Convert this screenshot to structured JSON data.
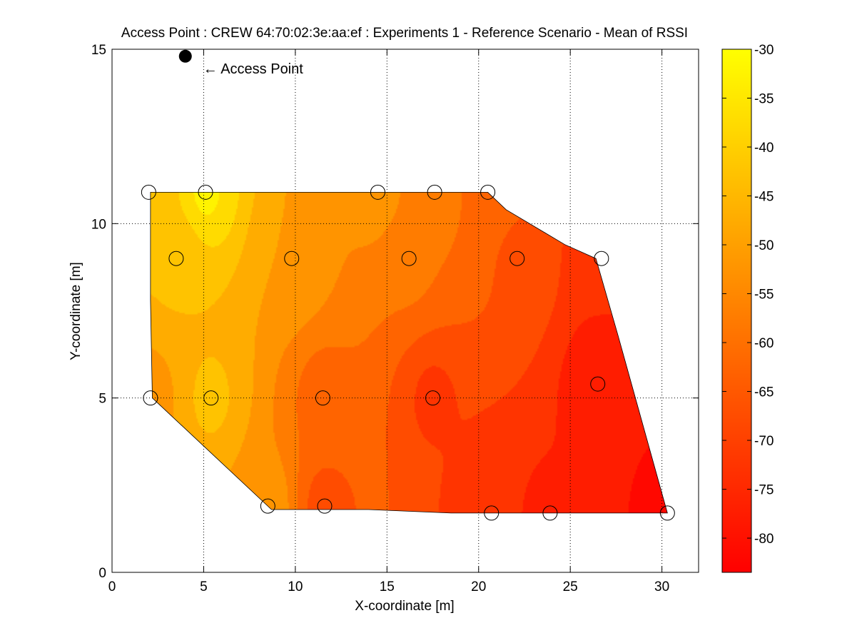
{
  "chart_data": {
    "type": "contour",
    "title": "Access Point : CREW 64:70:02:3e:aa:ef : Experiments 1 - Reference Scenario - Mean of RSSI",
    "xlabel": "X-coordinate [m]",
    "ylabel": "Y-coordinate [m]",
    "xlim": [
      0,
      32
    ],
    "ylim": [
      0,
      15
    ],
    "xticks": [
      0,
      5,
      10,
      15,
      20,
      25,
      30
    ],
    "yticks": [
      0,
      5,
      10,
      15
    ],
    "grid": true,
    "colormap": "autumn",
    "colorbar": {
      "range": [
        -83.5,
        -30
      ],
      "ticks": [
        -30,
        -35,
        -40,
        -45,
        -50,
        -55,
        -60,
        -65,
        -70,
        -75,
        -80
      ],
      "color_max": "#ffff00",
      "color_min": "#ff0000"
    },
    "access_point": {
      "x": 4.0,
      "y": 14.8,
      "annotation": "← Access Point",
      "color": "#000000"
    },
    "measurement_points": [
      {
        "x": 2.0,
        "y": 10.9,
        "rssi": -43
      },
      {
        "x": 5.1,
        "y": 10.9,
        "rssi": -34
      },
      {
        "x": 14.5,
        "y": 10.9,
        "rssi": -52
      },
      {
        "x": 17.6,
        "y": 10.9,
        "rssi": -58
      },
      {
        "x": 20.5,
        "y": 10.9,
        "rssi": -61
      },
      {
        "x": 3.5,
        "y": 9.0,
        "rssi": -44
      },
      {
        "x": 9.8,
        "y": 9.0,
        "rssi": -50
      },
      {
        "x": 16.2,
        "y": 9.0,
        "rssi": -59
      },
      {
        "x": 22.1,
        "y": 9.0,
        "rssi": -66
      },
      {
        "x": 26.7,
        "y": 9.0,
        "rssi": -74
      },
      {
        "x": 2.1,
        "y": 5.0,
        "rssi": -52
      },
      {
        "x": 5.4,
        "y": 5.0,
        "rssi": -44
      },
      {
        "x": 11.5,
        "y": 5.0,
        "rssi": -62
      },
      {
        "x": 17.5,
        "y": 5.0,
        "rssi": -71
      },
      {
        "x": 26.5,
        "y": 5.4,
        "rssi": -79
      },
      {
        "x": 8.5,
        "y": 1.9,
        "rssi": -52
      },
      {
        "x": 11.6,
        "y": 1.9,
        "rssi": -67
      },
      {
        "x": 20.7,
        "y": 1.7,
        "rssi": -75
      },
      {
        "x": 23.9,
        "y": 1.7,
        "rssi": -76
      },
      {
        "x": 30.3,
        "y": 1.7,
        "rssi": -83
      }
    ],
    "contour_levels": [
      -35,
      -40,
      -45,
      -50,
      -55,
      -60,
      -65,
      -70,
      -75,
      -80
    ],
    "measured_region": [
      [
        2.1,
        10.9
      ],
      [
        20.5,
        10.9
      ],
      [
        21.5,
        10.4
      ],
      [
        24.7,
        9.4
      ],
      [
        26.4,
        9.0
      ],
      [
        27.6,
        6.8
      ],
      [
        30.3,
        1.7
      ],
      [
        18.5,
        1.7
      ],
      [
        14.0,
        1.8
      ],
      [
        8.7,
        1.8
      ],
      [
        2.2,
        5.0
      ],
      [
        2.1,
        7.8
      ]
    ]
  }
}
